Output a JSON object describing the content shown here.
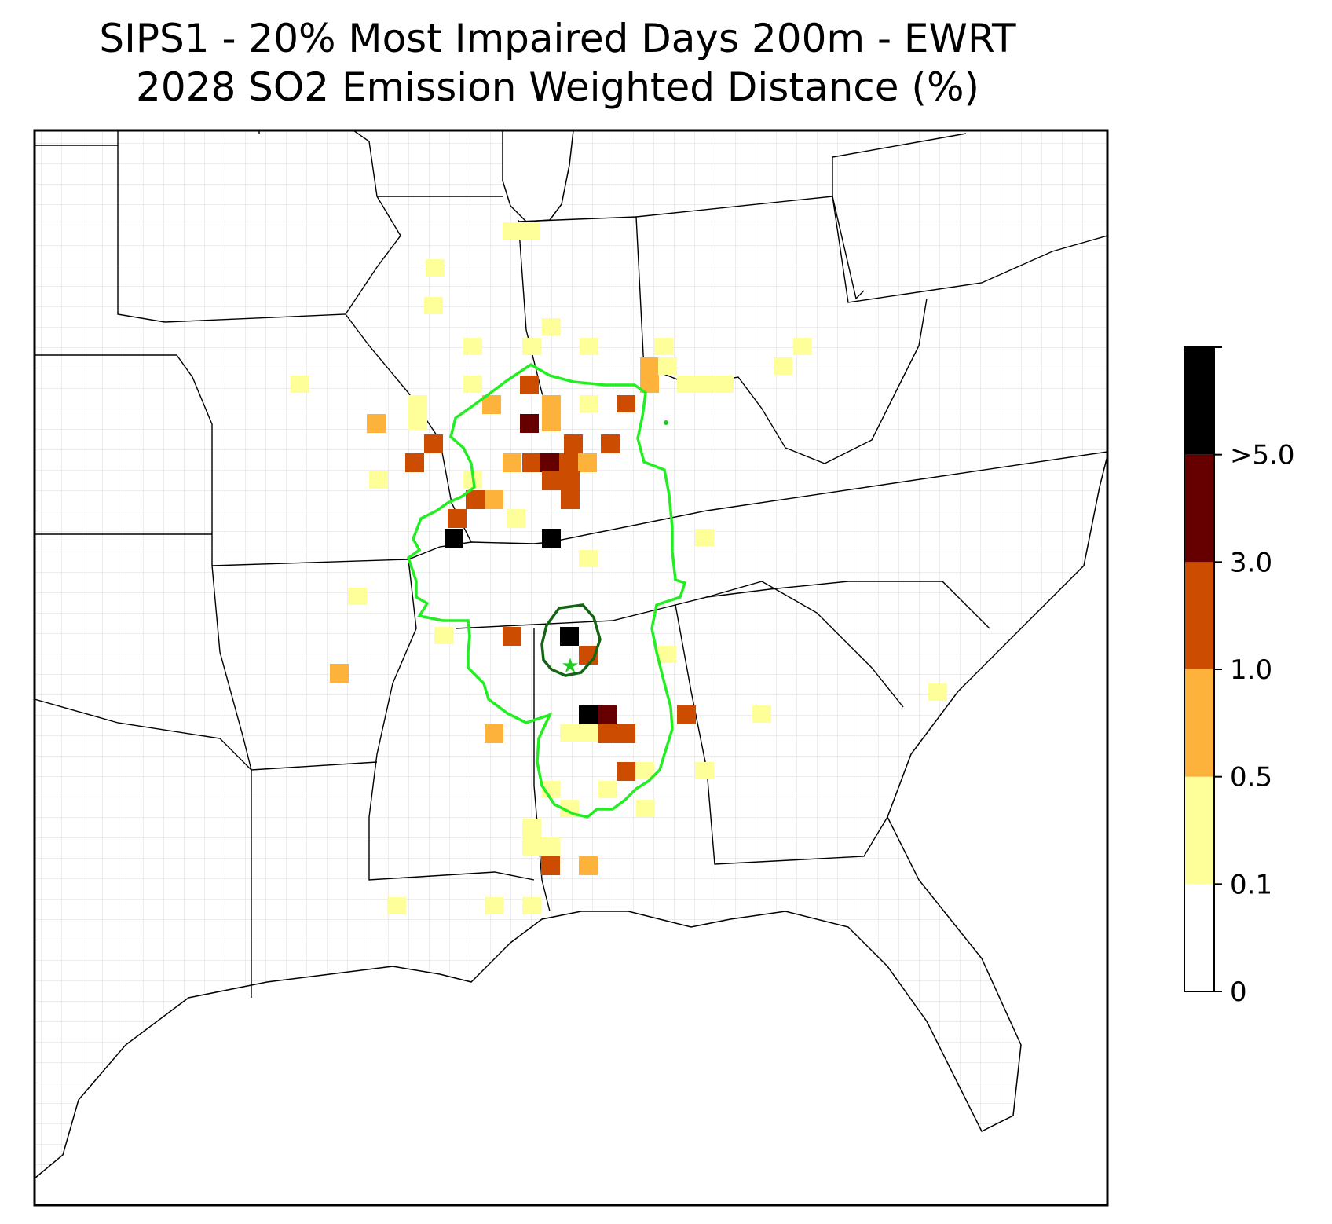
{
  "title": {
    "line1": "SIPS1 - 20% Most Impaired Days 200m - EWRT",
    "line2": "2028 SO2 Emission Weighted Distance (%)"
  },
  "colorbar": {
    "ticks": [
      "0",
      "0.1",
      "0.5",
      "1.0",
      "3.0",
      ">5.0"
    ],
    "bins": [
      {
        "range": "0-0.1",
        "color": "#ffffff"
      },
      {
        "range": "0.1-0.5",
        "color": "#ffff99"
      },
      {
        "range": "0.5-1.0",
        "color": "#fdb23c"
      },
      {
        "range": "1.0-3.0",
        "color": "#cc4c02"
      },
      {
        "range": "3.0-5.0",
        "color": "#660000"
      },
      {
        "range": ">5.0",
        "color": "#000000"
      }
    ]
  },
  "map": {
    "state_line_color": "#000000",
    "county_line_color": "#999999",
    "outer_contour_color": "#22ee22",
    "inner_contour_color": "#136413",
    "marker": "star-icon",
    "marker_color": "#22cc22"
  }
}
